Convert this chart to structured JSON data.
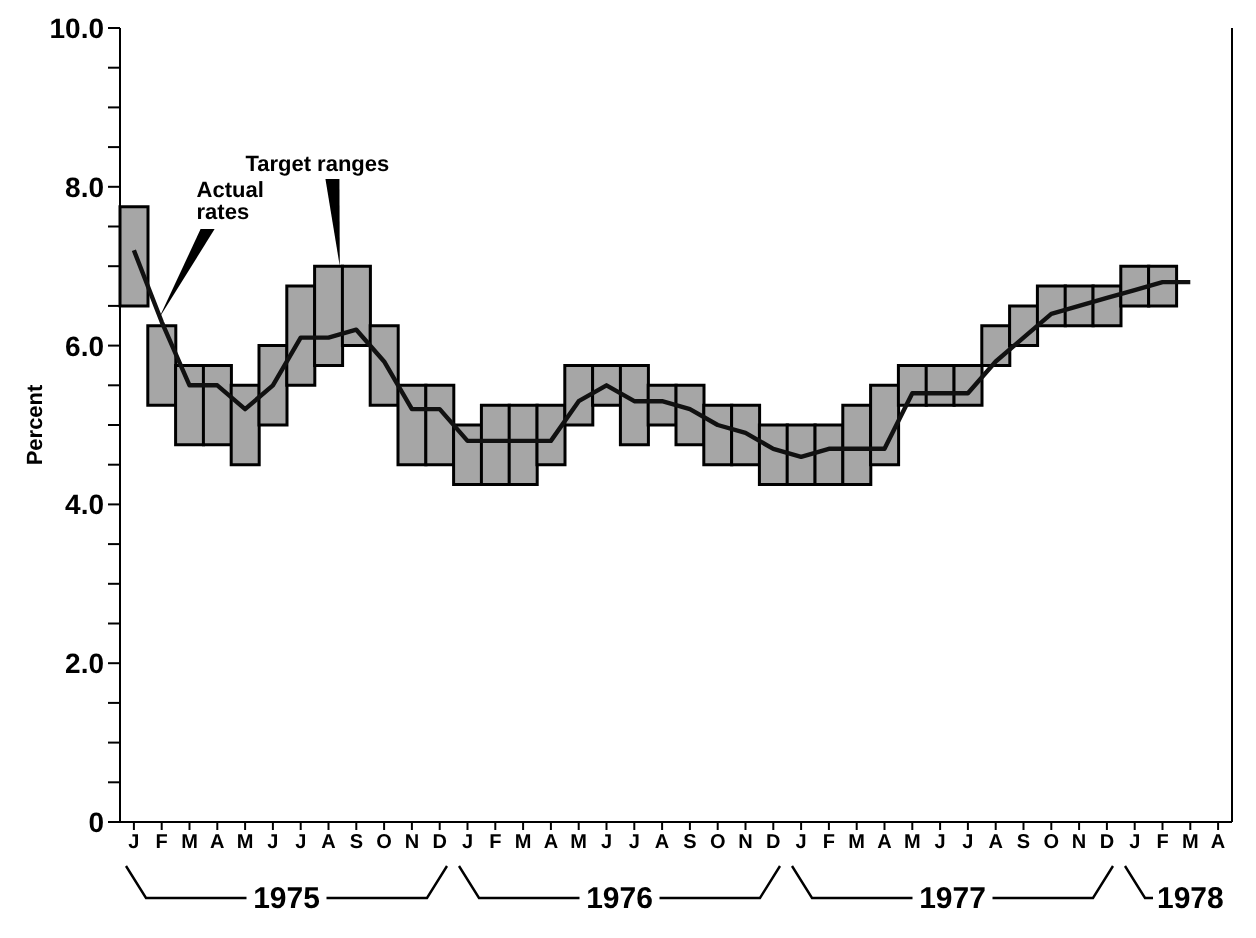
{
  "chart_data": {
    "type": "bar",
    "ylabel": "Percent",
    "categories": [
      "J",
      "F",
      "M",
      "A",
      "M",
      "J",
      "J",
      "A",
      "S",
      "O",
      "N",
      "D",
      "J",
      "F",
      "M",
      "A",
      "M",
      "J",
      "J",
      "A",
      "S",
      "O",
      "N",
      "D",
      "J",
      "F",
      "M",
      "A",
      "M",
      "J",
      "J",
      "A",
      "S",
      "O",
      "N",
      "D",
      "J",
      "F",
      "M",
      "A"
    ],
    "series": [
      {
        "color": "#a6a6a6",
        "base": [
          6.5,
          5.25,
          4.75,
          4.75,
          4.5,
          5.0,
          5.5,
          5.75,
          6.0,
          5.25,
          4.5,
          4.5,
          4.25,
          4.25,
          4.25,
          4.5,
          5.0,
          5.25,
          4.75,
          5.0,
          4.75,
          4.5,
          4.5,
          4.25,
          4.25,
          4.25,
          4.25,
          4.5,
          5.25,
          5.25,
          5.25,
          5.75,
          6.0,
          6.25,
          6.25,
          6.25,
          6.5,
          6.5,
          null,
          null
        ],
        "values": [
          1.25,
          1.0,
          1.0,
          1.0,
          1.0,
          1.0,
          1.25,
          1.25,
          1.0,
          1.0,
          1.0,
          1.0,
          0.75,
          1.0,
          1.0,
          0.75,
          0.75,
          0.5,
          1.0,
          0.5,
          0.75,
          0.75,
          0.75,
          0.75,
          0.75,
          0.75,
          1.0,
          1.0,
          0.5,
          0.5,
          0.5,
          0.5,
          0.5,
          0.5,
          0.5,
          0.5,
          0.5,
          0.5,
          null,
          null
        ]
      },
      {
        "type": "line",
        "color": "#111111",
        "values": [
          7.2,
          6.3,
          5.5,
          5.5,
          5.2,
          5.5,
          6.1,
          6.1,
          6.2,
          5.8,
          5.2,
          5.2,
          4.8,
          4.8,
          4.8,
          4.8,
          5.3,
          5.5,
          5.3,
          5.3,
          5.2,
          5.0,
          4.9,
          4.7,
          4.6,
          4.7,
          4.7,
          4.7,
          5.4,
          5.4,
          5.4,
          5.8,
          6.1,
          6.4,
          6.5,
          6.6,
          6.7,
          6.8,
          6.8,
          null
        ]
      }
    ],
    "ylim": [
      0,
      10
    ],
    "yticks": [
      {
        "value": 0,
        "label": "0"
      },
      {
        "value": 0.5,
        "label": null
      },
      {
        "value": 1,
        "label": null
      },
      {
        "value": 1.5,
        "label": null
      },
      {
        "value": 2,
        "label": "2.0"
      },
      {
        "value": 2.5,
        "label": null
      },
      {
        "value": 3,
        "label": null
      },
      {
        "value": 3.5,
        "label": null
      },
      {
        "value": 4,
        "label": "4.0"
      },
      {
        "value": 4.5,
        "label": null
      },
      {
        "value": 5,
        "label": null
      },
      {
        "value": 5.5,
        "label": null
      },
      {
        "value": 6,
        "label": "6.0"
      },
      {
        "value": 6.5,
        "label": null
      },
      {
        "value": 7,
        "label": null
      },
      {
        "value": 7.5,
        "label": null
      },
      {
        "value": 8,
        "label": "8.0"
      },
      {
        "value": 8.5,
        "label": null
      },
      {
        "value": 9,
        "label": null
      },
      {
        "value": 9.5,
        "label": null
      },
      {
        "value": 10,
        "label": "10.0"
      }
    ],
    "marker": "none",
    "line_style": "solid",
    "annotations": [
      "Actual rates",
      "Target ranges",
      "1975",
      "1976",
      "1977",
      "1978"
    ]
  }
}
